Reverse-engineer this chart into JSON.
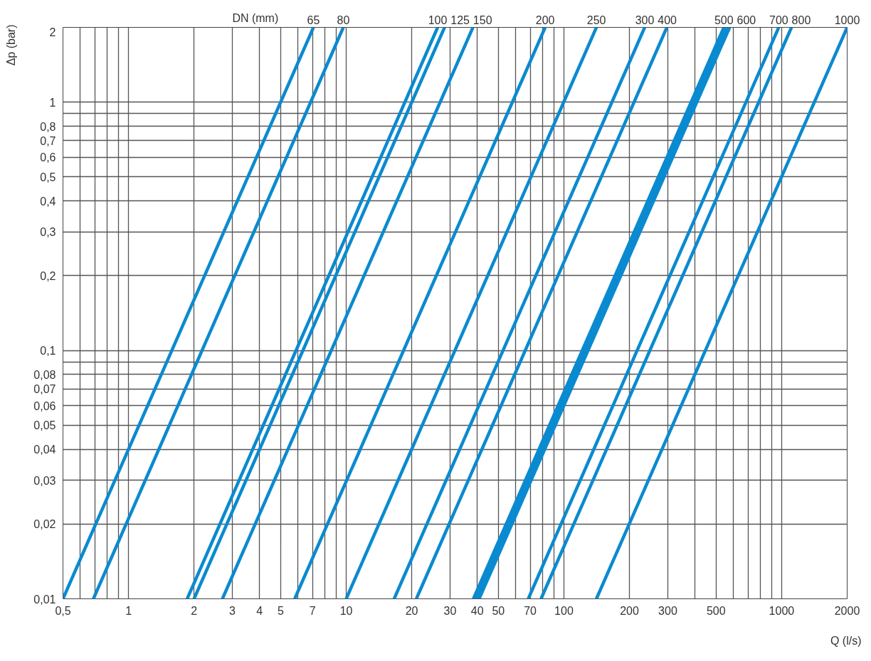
{
  "chart_data": {
    "type": "line",
    "xlabel": "Q (l/s)",
    "ylabel": "Δp (bar)",
    "log": "xy",
    "grid": true,
    "legend": false,
    "marker": "none",
    "line_style": "solid",
    "annotations": [
      "DN (mm)"
    ],
    "xlim": [
      0.5,
      2000
    ],
    "ylim": [
      0.01,
      2
    ],
    "xticks": [
      {
        "value": 0.5,
        "label": "0,5"
      },
      {
        "value": 0.6,
        "label": null
      },
      {
        "value": 0.7,
        "label": null
      },
      {
        "value": 0.8,
        "label": null
      },
      {
        "value": 0.9,
        "label": null
      },
      1,
      2,
      3,
      4,
      5,
      {
        "value": 6,
        "label": null
      },
      7,
      {
        "value": 8,
        "label": null
      },
      {
        "value": 9,
        "label": null
      },
      10,
      20,
      30,
      40,
      50,
      {
        "value": 60,
        "label": null
      },
      70,
      {
        "value": 80,
        "label": null
      },
      {
        "value": 90,
        "label": null
      },
      100,
      200,
      300,
      {
        "value": 400,
        "label": null
      },
      500,
      {
        "value": 600,
        "label": null
      },
      {
        "value": 700,
        "label": null
      },
      {
        "value": 800,
        "label": null
      },
      {
        "value": 900,
        "label": null
      },
      1000,
      2000
    ],
    "yticks": [
      {
        "value": 0.01,
        "label": "0,01"
      },
      {
        "value": 0.02,
        "label": "0,02"
      },
      {
        "value": 0.03,
        "label": "0,03"
      },
      {
        "value": 0.04,
        "label": "0,04"
      },
      {
        "value": 0.05,
        "label": "0,05"
      },
      {
        "value": 0.06,
        "label": "0,06"
      },
      {
        "value": 0.07,
        "label": "0,07"
      },
      {
        "value": 0.08,
        "label": "0,08"
      },
      {
        "value": 0.09,
        "label": null
      },
      {
        "value": 0.1,
        "label": "0,1"
      },
      {
        "value": 0.2,
        "label": "0,2"
      },
      {
        "value": 0.3,
        "label": "0,3"
      },
      {
        "value": 0.4,
        "label": "0,4"
      },
      {
        "value": 0.5,
        "label": "0,5"
      },
      {
        "value": 0.6,
        "label": "0,6"
      },
      {
        "value": 0.7,
        "label": "0,7"
      },
      {
        "value": 0.8,
        "label": "0,8"
      },
      {
        "value": 0.9,
        "label": null
      },
      1,
      2
    ],
    "series": [
      {
        "name": "65",
        "color": "#0a8ad0",
        "x": [
          0.5,
          7.07
        ],
        "values": [
          0.01,
          2
        ]
      },
      {
        "name": "80",
        "color": "#0a8ad0",
        "x": [
          0.69,
          9.7
        ],
        "values": [
          0.01,
          2
        ]
      },
      {
        "name": "100",
        "color": "#0a8ad0",
        "x": [
          1.86,
          26.3
        ],
        "values": [
          0.01,
          2
        ]
      },
      {
        "name": "125",
        "color": "#0a8ad0",
        "x": [
          2.0,
          28.3
        ],
        "values": [
          0.01,
          2
        ]
      },
      {
        "name": "150",
        "color": "#0a8ad0",
        "x": [
          2.7,
          38.2
        ],
        "values": [
          0.01,
          2
        ]
      },
      {
        "name": "200",
        "color": "#0a8ad0",
        "x": [
          5.8,
          82
        ],
        "values": [
          0.01,
          2
        ]
      },
      {
        "name": "250",
        "color": "#0a8ad0",
        "x": [
          10,
          141
        ],
        "values": [
          0.01,
          2
        ]
      },
      {
        "name": "300",
        "color": "#0a8ad0",
        "x": [
          16.6,
          235
        ],
        "values": [
          0.01,
          2
        ]
      },
      {
        "name": "400",
        "color": "#0a8ad0",
        "x": [
          21,
          297
        ],
        "values": [
          0.01,
          2
        ]
      },
      {
        "name": "500",
        "color": "#0a8ad0",
        "x": [
          38.4,
          543
        ],
        "values": [
          0.01,
          2
        ]
      },
      {
        "color": "#0a8ad0",
        "x": [
          39.6,
          560
        ],
        "values": [
          0.01,
          2
        ]
      },
      {
        "name": "600",
        "color": "#0a8ad0",
        "x": [
          40.8,
          577
        ],
        "values": [
          0.01,
          2
        ]
      },
      {
        "name": "700",
        "color": "#0a8ad0",
        "x": [
          68.6,
          970
        ],
        "values": [
          0.01,
          2
        ]
      },
      {
        "name": "800",
        "color": "#0a8ad0",
        "x": [
          78.5,
          1110
        ],
        "values": [
          0.01,
          2
        ]
      },
      {
        "name": "1000",
        "color": "#0a8ad0",
        "x": [
          141,
          2000
        ],
        "values": [
          0.01,
          2
        ]
      }
    ]
  }
}
